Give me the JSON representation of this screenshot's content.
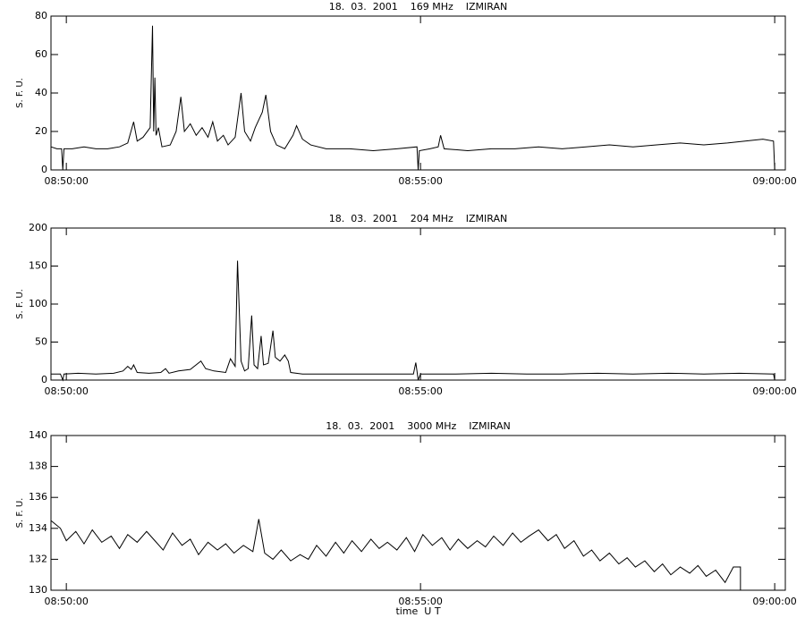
{
  "chart_data": [
    {
      "type": "line",
      "title": "18.  03.  2001    169 MHz    IZMIRAN",
      "y_label": "S. F. U.",
      "color": "#000000",
      "xlim": [
        "08:49:47",
        "09:00:09"
      ],
      "xticks": [
        "08:50:00",
        "08:55:00",
        "09:00:00"
      ],
      "ylim": [
        0,
        80
      ],
      "yticks": [
        0,
        20,
        40,
        60,
        80
      ],
      "x": [
        "08:49:47",
        "08:49:52",
        "08:49:56",
        "08:49:57",
        "08:49:58",
        "08:50:05",
        "08:50:15",
        "08:50:25",
        "08:50:35",
        "08:50:45",
        "08:50:52",
        "08:50:57",
        "08:51:00",
        "08:51:05",
        "08:51:11",
        "08:51:13",
        "08:51:14",
        "08:51:15",
        "08:51:16",
        "08:51:18",
        "08:51:21",
        "08:51:28",
        "08:51:33",
        "08:51:37",
        "08:51:40",
        "08:51:45",
        "08:51:50",
        "08:51:55",
        "08:52:00",
        "08:52:04",
        "08:52:08",
        "08:52:13",
        "08:52:17",
        "08:52:23",
        "08:52:28",
        "08:52:31",
        "08:52:36",
        "08:52:40",
        "08:52:46",
        "08:52:49",
        "08:52:53",
        "08:52:58",
        "08:53:05",
        "08:53:12",
        "08:53:15",
        "08:53:20",
        "08:53:27",
        "08:53:40",
        "08:54:00",
        "08:54:20",
        "08:54:40",
        "08:54:57",
        "08:54:58",
        "08:54:59",
        "08:55:08",
        "08:55:15",
        "08:55:17",
        "08:55:20",
        "08:55:40",
        "08:56:00",
        "08:56:20",
        "08:56:40",
        "08:57:00",
        "08:57:20",
        "08:57:40",
        "08:58:00",
        "08:58:20",
        "08:58:40",
        "08:59:00",
        "08:59:20",
        "08:59:35",
        "08:59:50",
        "08:59:59",
        "09:00:00"
      ],
      "values": [
        12,
        11,
        11,
        0,
        11,
        11,
        12,
        11,
        11,
        12,
        14,
        25,
        15,
        17,
        22,
        75,
        20,
        48,
        18,
        22,
        12,
        13,
        20,
        38,
        20,
        24,
        18,
        22,
        17,
        25,
        15,
        18,
        13,
        17,
        40,
        20,
        15,
        22,
        30,
        39,
        20,
        13,
        11,
        18,
        23,
        16,
        13,
        11,
        11,
        10,
        11,
        12,
        0,
        10,
        11,
        12,
        18,
        11,
        10,
        11,
        11,
        12,
        11,
        12,
        13,
        12,
        13,
        14,
        13,
        14,
        15,
        16,
        15,
        0
      ]
    },
    {
      "type": "line",
      "title": "18.  03.  2001    204 MHz    IZMIRAN",
      "y_label": "S. F. U.",
      "color": "#000000",
      "xlim": [
        "08:49:47",
        "09:00:09"
      ],
      "xticks": [
        "08:50:00",
        "08:55:00",
        "09:00:00"
      ],
      "ylim": [
        0,
        200
      ],
      "yticks": [
        0,
        50,
        100,
        150,
        200
      ],
      "x": [
        "08:49:47",
        "08:49:55",
        "08:49:57",
        "08:49:58",
        "08:50:10",
        "08:50:25",
        "08:50:40",
        "08:50:48",
        "08:50:52",
        "08:50:55",
        "08:50:57",
        "08:51:00",
        "08:51:10",
        "08:51:20",
        "08:51:24",
        "08:51:27",
        "08:51:35",
        "08:51:45",
        "08:51:54",
        "08:51:58",
        "08:52:05",
        "08:52:15",
        "08:52:19",
        "08:52:23",
        "08:52:25",
        "08:52:28",
        "08:52:31",
        "08:52:34",
        "08:52:37",
        "08:52:39",
        "08:52:42",
        "08:52:45",
        "08:52:47",
        "08:52:51",
        "08:52:55",
        "08:52:57",
        "08:53:01",
        "08:53:05",
        "08:53:08",
        "08:53:10",
        "08:53:20",
        "08:53:40",
        "08:54:00",
        "08:54:30",
        "08:54:54",
        "08:54:56",
        "08:54:57",
        "08:54:58",
        "08:55:00",
        "08:55:30",
        "08:56:00",
        "08:56:30",
        "08:57:00",
        "08:57:30",
        "08:58:00",
        "08:58:30",
        "08:59:00",
        "08:59:30",
        "08:59:59",
        "09:00:00"
      ],
      "values": [
        8,
        8,
        0,
        8,
        9,
        8,
        9,
        12,
        18,
        14,
        20,
        10,
        9,
        10,
        15,
        9,
        12,
        14,
        25,
        15,
        12,
        10,
        28,
        18,
        157,
        25,
        12,
        15,
        85,
        20,
        15,
        58,
        20,
        22,
        65,
        30,
        25,
        33,
        25,
        10,
        8,
        8,
        8,
        8,
        8,
        23,
        12,
        0,
        8,
        8,
        9,
        8,
        8,
        9,
        8,
        9,
        8,
        9,
        8,
        0
      ]
    },
    {
      "type": "line",
      "title": "18.  03.  2001    3000 MHz    IZMIRAN",
      "y_label": "S. F. U.",
      "x_label": "time  U T",
      "color": "#000000",
      "xlim": [
        "08:49:47",
        "09:00:09"
      ],
      "xticks": [
        "08:50:00",
        "08:55:00",
        "09:00:00"
      ],
      "ylim": [
        130,
        140
      ],
      "yticks": [
        130,
        132,
        134,
        136,
        138,
        140
      ],
      "x": [
        "08:49:47",
        "08:49:55",
        "08:50:00",
        "08:50:08",
        "08:50:15",
        "08:50:22",
        "08:50:30",
        "08:50:38",
        "08:50:45",
        "08:50:52",
        "08:51:00",
        "08:51:08",
        "08:51:15",
        "08:51:22",
        "08:51:30",
        "08:51:38",
        "08:51:45",
        "08:51:52",
        "08:52:00",
        "08:52:08",
        "08:52:15",
        "08:52:22",
        "08:52:30",
        "08:52:38",
        "08:52:43",
        "08:52:48",
        "08:52:55",
        "08:53:02",
        "08:53:10",
        "08:53:18",
        "08:53:25",
        "08:53:32",
        "08:53:40",
        "08:53:48",
        "08:53:55",
        "08:54:02",
        "08:54:10",
        "08:54:18",
        "08:54:25",
        "08:54:32",
        "08:54:40",
        "08:54:48",
        "08:54:55",
        "08:55:02",
        "08:55:10",
        "08:55:18",
        "08:55:25",
        "08:55:32",
        "08:55:40",
        "08:55:48",
        "08:55:55",
        "08:56:02",
        "08:56:10",
        "08:56:18",
        "08:56:25",
        "08:56:32",
        "08:56:40",
        "08:56:48",
        "08:56:55",
        "08:57:02",
        "08:57:10",
        "08:57:18",
        "08:57:25",
        "08:57:32",
        "08:57:40",
        "08:57:48",
        "08:57:55",
        "08:58:02",
        "08:58:10",
        "08:58:18",
        "08:58:25",
        "08:58:32",
        "08:58:40",
        "08:58:48",
        "08:58:55",
        "08:59:02",
        "08:59:10",
        "08:59:18",
        "08:59:25",
        "08:59:31",
        "08:59:31"
      ],
      "values": [
        134.5,
        134,
        133.2,
        133.8,
        133,
        133.9,
        133.1,
        133.5,
        132.7,
        133.6,
        133.1,
        133.8,
        133.2,
        132.6,
        133.7,
        132.9,
        133.3,
        132.3,
        133.1,
        132.6,
        133,
        132.4,
        132.9,
        132.5,
        134.6,
        132.4,
        132,
        132.6,
        131.9,
        132.3,
        132,
        132.9,
        132.2,
        133.1,
        132.4,
        133.2,
        132.5,
        133.3,
        132.7,
        133.1,
        132.6,
        133.4,
        132.5,
        133.6,
        132.9,
        133.4,
        132.6,
        133.3,
        132.7,
        133.2,
        132.8,
        133.5,
        132.9,
        133.7,
        133.1,
        133.5,
        133.9,
        133.2,
        133.6,
        132.7,
        133.2,
        132.2,
        132.6,
        131.9,
        132.4,
        131.7,
        132.1,
        131.5,
        131.9,
        131.2,
        131.7,
        131,
        131.5,
        131.1,
        131.6,
        130.9,
        131.3,
        130.5,
        131.5,
        131.5,
        130
      ]
    }
  ]
}
